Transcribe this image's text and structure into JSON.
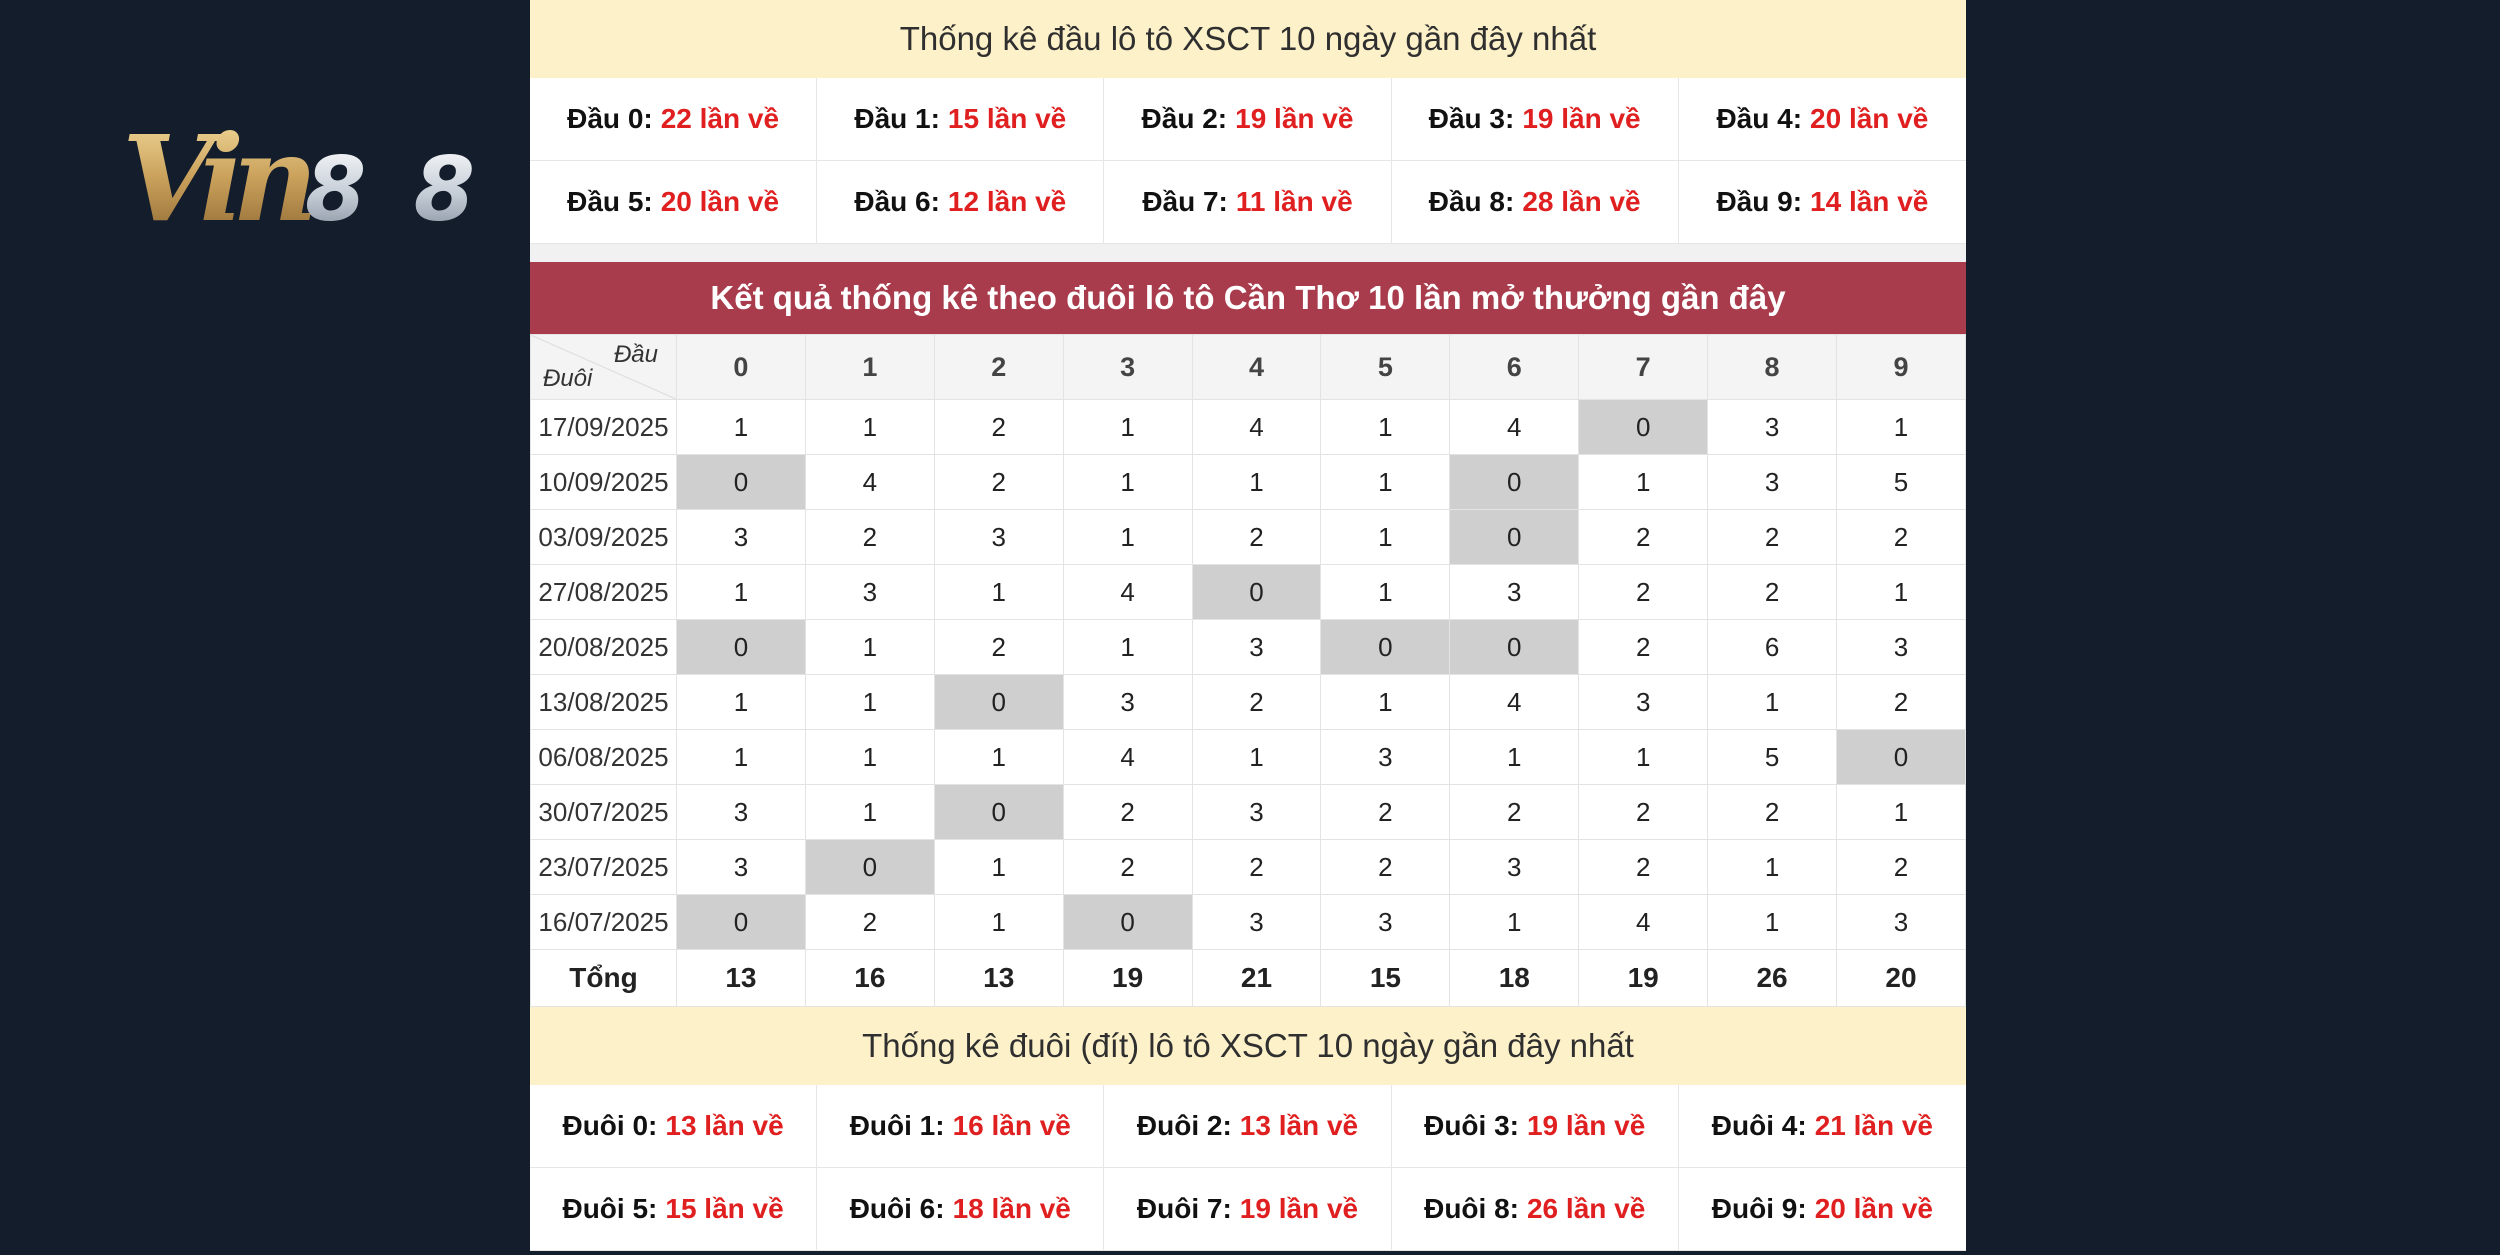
{
  "brand": {
    "logo_text": "Vin88"
  },
  "head_section": {
    "title": "Thống kê đầu lô tô XSCT 10 ngày gần đây nhất",
    "items": [
      {
        "label": "Đầu 0:",
        "count": "22 lần về"
      },
      {
        "label": "Đầu 1:",
        "count": "15 lần về"
      },
      {
        "label": "Đầu 2:",
        "count": "19 lần về"
      },
      {
        "label": "Đầu 3:",
        "count": "19 lần về"
      },
      {
        "label": "Đầu 4:",
        "count": "20 lần về"
      },
      {
        "label": "Đầu 5:",
        "count": "20 lần về"
      },
      {
        "label": "Đầu 6:",
        "count": "12 lần về"
      },
      {
        "label": "Đầu 7:",
        "count": "11 lần về"
      },
      {
        "label": "Đầu 8:",
        "count": "28 lần về"
      },
      {
        "label": "Đầu 9:",
        "count": "14 lần về"
      }
    ]
  },
  "result_table": {
    "title": "Kết quả thống kê theo đuôi lô tô Cần Thơ 10 lần mở thưởng gần đây",
    "corner_top": "Đầu",
    "corner_bottom": "Đuôi",
    "columns": [
      "0",
      "1",
      "2",
      "3",
      "4",
      "5",
      "6",
      "7",
      "8",
      "9"
    ],
    "rows": [
      {
        "date": "17/09/2025",
        "values": [
          "1",
          "1",
          "2",
          "1",
          "4",
          "1",
          "4",
          "0",
          "3",
          "1"
        ]
      },
      {
        "date": "10/09/2025",
        "values": [
          "0",
          "4",
          "2",
          "1",
          "1",
          "1",
          "0",
          "1",
          "3",
          "5"
        ]
      },
      {
        "date": "03/09/2025",
        "values": [
          "3",
          "2",
          "3",
          "1",
          "2",
          "1",
          "0",
          "2",
          "2",
          "2"
        ]
      },
      {
        "date": "27/08/2025",
        "values": [
          "1",
          "3",
          "1",
          "4",
          "0",
          "1",
          "3",
          "2",
          "2",
          "1"
        ]
      },
      {
        "date": "20/08/2025",
        "values": [
          "0",
          "1",
          "2",
          "1",
          "3",
          "0",
          "0",
          "2",
          "6",
          "3"
        ]
      },
      {
        "date": "13/08/2025",
        "values": [
          "1",
          "1",
          "0",
          "3",
          "2",
          "1",
          "4",
          "3",
          "1",
          "2"
        ]
      },
      {
        "date": "06/08/2025",
        "values": [
          "1",
          "1",
          "1",
          "4",
          "1",
          "3",
          "1",
          "1",
          "5",
          "0"
        ]
      },
      {
        "date": "30/07/2025",
        "values": [
          "3",
          "1",
          "0",
          "2",
          "3",
          "2",
          "2",
          "2",
          "2",
          "1"
        ]
      },
      {
        "date": "23/07/2025",
        "values": [
          "3",
          "0",
          "1",
          "2",
          "2",
          "2",
          "3",
          "2",
          "1",
          "2"
        ]
      },
      {
        "date": "16/07/2025",
        "values": [
          "0",
          "2",
          "1",
          "0",
          "3",
          "3",
          "1",
          "4",
          "1",
          "3"
        ]
      }
    ],
    "total_label": "Tổng",
    "totals": [
      "13",
      "16",
      "13",
      "19",
      "21",
      "15",
      "18",
      "19",
      "26",
      "20"
    ]
  },
  "tail_section": {
    "title": "Thống kê đuôi (đít) lô tô XSCT 10 ngày gần đây nhất",
    "items": [
      {
        "label": "Đuôi 0:",
        "count": "13 lần về"
      },
      {
        "label": "Đuôi 1:",
        "count": "16 lần về"
      },
      {
        "label": "Đuôi 2:",
        "count": "13 lần về"
      },
      {
        "label": "Đuôi 3:",
        "count": "19 lần về"
      },
      {
        "label": "Đuôi 4:",
        "count": "21 lần về"
      },
      {
        "label": "Đuôi 5:",
        "count": "15 lần về"
      },
      {
        "label": "Đuôi 6:",
        "count": "18 lần về"
      },
      {
        "label": "Đuôi 7:",
        "count": "19 lần về"
      },
      {
        "label": "Đuôi 8:",
        "count": "26 lần về"
      },
      {
        "label": "Đuôi 9:",
        "count": "20 lần về"
      }
    ]
  },
  "colors": {
    "background": "#141d2b",
    "header_red": "#a93c4c",
    "header_yellow": "#fdf1c9",
    "count_red": "#e02020",
    "zero_cell": "#cfcfcf"
  }
}
